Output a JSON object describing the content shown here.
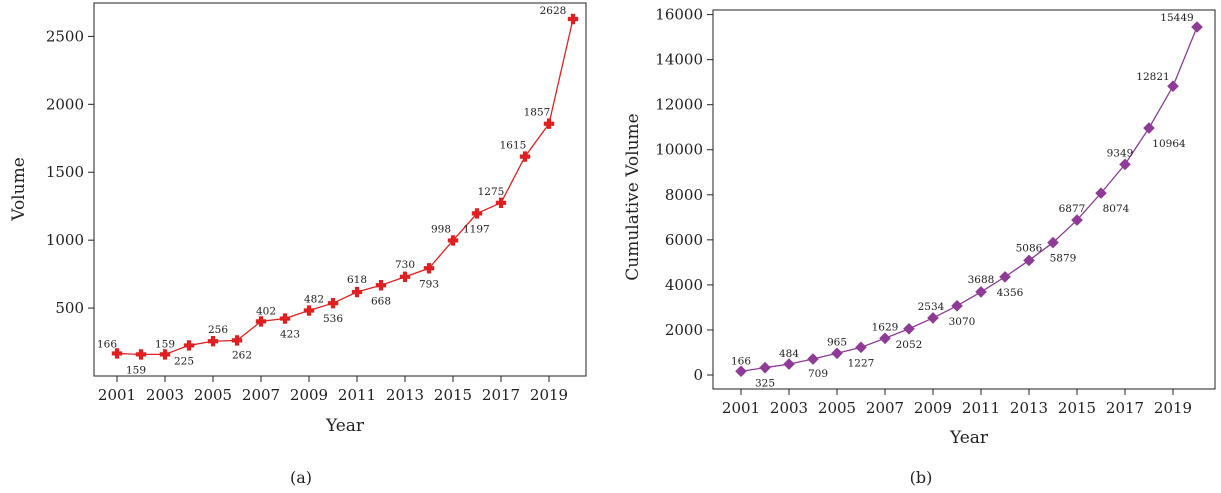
{
  "chart_data": [
    {
      "type": "line",
      "panel_label": "(a)",
      "xlabel": "Year",
      "ylabel": "Volume",
      "color": "#e02020",
      "marker": "plus",
      "x": [
        2001,
        2002,
        2003,
        2004,
        2005,
        2006,
        2007,
        2008,
        2009,
        2010,
        2011,
        2012,
        2013,
        2014,
        2015,
        2016,
        2017,
        2018,
        2019,
        2020
      ],
      "values": [
        166,
        159,
        159,
        225,
        256,
        262,
        402,
        423,
        482,
        536,
        618,
        668,
        730,
        793,
        998,
        1197,
        1275,
        1615,
        1857,
        2628
      ],
      "xticks": [
        "2001",
        "2003",
        "2005",
        "2007",
        "2009",
        "2011",
        "2013",
        "2015",
        "2017",
        "2019"
      ],
      "yticks": [
        "500",
        "1000",
        "1500",
        "2000",
        "2500"
      ],
      "xlim": [
        2001,
        2021
      ],
      "ylim": [
        70,
        2700
      ],
      "grid": false
    },
    {
      "type": "line",
      "panel_label": "(b)",
      "xlabel": "Year",
      "ylabel": "Cumulative Volume",
      "color": "#8e3a96",
      "marker": "diamond",
      "x": [
        2001,
        2002,
        2003,
        2004,
        2005,
        2006,
        2007,
        2008,
        2009,
        2010,
        2011,
        2012,
        2013,
        2014,
        2015,
        2016,
        2017,
        2018,
        2019,
        2020
      ],
      "values": [
        166,
        325,
        484,
        709,
        965,
        1227,
        1629,
        2052,
        2534,
        3070,
        3688,
        4356,
        5086,
        5879,
        6877,
        8074,
        9349,
        10964,
        12821,
        15449
      ],
      "xticks": [
        "2001",
        "2003",
        "2005",
        "2007",
        "2009",
        "2011",
        "2013",
        "2015",
        "2017",
        "2019"
      ],
      "yticks": [
        "0",
        "2000",
        "4000",
        "6000",
        "8000",
        "10000",
        "12000",
        "14000",
        "16000"
      ],
      "xlim": [
        2001,
        2021
      ],
      "ylim": [
        -550,
        16250
      ],
      "grid": false
    }
  ]
}
